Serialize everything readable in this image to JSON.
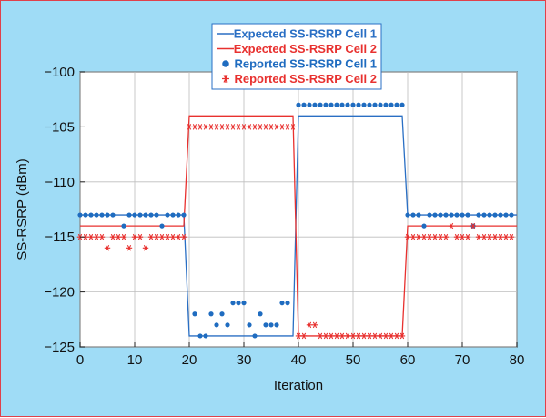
{
  "chart_data": {
    "type": "scatter",
    "title": "",
    "xlabel": "Iteration",
    "ylabel": "SS-RSRP (dBm)",
    "xlim": [
      0,
      80
    ],
    "ylim": [
      -125,
      -100
    ],
    "xticks": [
      0,
      10,
      20,
      30,
      40,
      50,
      60,
      70,
      80
    ],
    "yticks": [
      -100,
      -105,
      -110,
      -115,
      -120,
      -125
    ],
    "xtick_labels": [
      "0",
      "10",
      "20",
      "30",
      "40",
      "50",
      "60",
      "70",
      "80"
    ],
    "ytick_labels": [
      "−100",
      "−105",
      "−110",
      "−115",
      "−120",
      "−125"
    ],
    "grid": true,
    "legend_position": "top-center",
    "series": [
      {
        "name": "Expected SS-RSRP Cell 1",
        "style": "line",
        "color": "#2a6fc4",
        "x": [
          0,
          19,
          20,
          39,
          40,
          59,
          60,
          80
        ],
        "y": [
          -113,
          -113,
          -124,
          -124,
          -104,
          -104,
          -113,
          -113
        ]
      },
      {
        "name": "Expected SS-RSRP Cell 2",
        "style": "line",
        "color": "#e8312f",
        "x": [
          0,
          19,
          20,
          39,
          40,
          59,
          60,
          80
        ],
        "y": [
          -114,
          -114,
          -104,
          -104,
          -124,
          -124,
          -114,
          -114
        ]
      },
      {
        "name": "Reported SS-RSRP Cell 1",
        "style": "dot",
        "color": "#1f6cc0",
        "x": [
          0,
          1,
          2,
          3,
          4,
          5,
          6,
          8,
          9,
          10,
          11,
          12,
          13,
          14,
          15,
          16,
          17,
          18,
          19,
          21,
          22,
          23,
          24,
          25,
          26,
          27,
          28,
          29,
          30,
          31,
          32,
          33,
          34,
          35,
          36,
          37,
          38,
          40,
          41,
          42,
          43,
          44,
          45,
          46,
          47,
          48,
          49,
          50,
          51,
          52,
          53,
          54,
          55,
          56,
          57,
          58,
          59,
          60,
          61,
          62,
          63,
          64,
          65,
          66,
          67,
          68,
          69,
          70,
          71,
          72,
          73,
          74,
          75,
          76,
          77,
          78,
          79
        ],
        "y": [
          -113,
          -113,
          -113,
          -113,
          -113,
          -113,
          -113,
          -114,
          -113,
          -113,
          -113,
          -113,
          -113,
          -113,
          -114,
          -113,
          -113,
          -113,
          -113,
          -122,
          -124,
          -124,
          -122,
          -123,
          -122,
          -123,
          -121,
          -121,
          -121,
          -123,
          -124,
          -122,
          -123,
          -123,
          -123,
          -121,
          -121,
          -103,
          -103,
          -103,
          -103,
          -103,
          -103,
          -103,
          -103,
          -103,
          -103,
          -103,
          -103,
          -103,
          -103,
          -103,
          -103,
          -103,
          -103,
          -103,
          -103,
          -113,
          -113,
          -113,
          -114,
          -113,
          -113,
          -113,
          -113,
          -113,
          -113,
          -113,
          -113,
          -114,
          -113,
          -113,
          -113,
          -113,
          -113,
          -113,
          -113
        ]
      },
      {
        "name": "Reported SS-RSRP Cell 2",
        "style": "star",
        "color": "#e8312f",
        "x": [
          0,
          1,
          2,
          3,
          4,
          5,
          6,
          7,
          8,
          9,
          10,
          11,
          12,
          13,
          14,
          15,
          16,
          17,
          18,
          19,
          20,
          21,
          22,
          23,
          24,
          25,
          26,
          27,
          28,
          29,
          30,
          31,
          32,
          33,
          34,
          35,
          36,
          37,
          38,
          39,
          40,
          41,
          42,
          43,
          44,
          45,
          46,
          47,
          48,
          49,
          50,
          51,
          52,
          53,
          54,
          55,
          56,
          57,
          58,
          59,
          60,
          61,
          62,
          63,
          64,
          65,
          66,
          67,
          68,
          69,
          70,
          71,
          72,
          73,
          74,
          75,
          76,
          77,
          78,
          79
        ],
        "y": [
          -115,
          -115,
          -115,
          -115,
          -115,
          -116,
          -115,
          -115,
          -115,
          -116,
          -115,
          -115,
          -116,
          -115,
          -115,
          -115,
          -115,
          -115,
          -115,
          -115,
          -105,
          -105,
          -105,
          -105,
          -105,
          -105,
          -105,
          -105,
          -105,
          -105,
          -105,
          -105,
          -105,
          -105,
          -105,
          -105,
          -105,
          -105,
          -105,
          -105,
          -124,
          -124,
          -123,
          -123,
          -124,
          -124,
          -124,
          -124,
          -124,
          -124,
          -124,
          -124,
          -124,
          -124,
          -124,
          -124,
          -124,
          -124,
          -124,
          -124,
          -115,
          -115,
          -115,
          -115,
          -115,
          -115,
          -115,
          -115,
          -114,
          -115,
          -115,
          -115,
          -114,
          -115,
          -115,
          -115,
          -115,
          -115,
          -115,
          -115
        ]
      }
    ]
  }
}
